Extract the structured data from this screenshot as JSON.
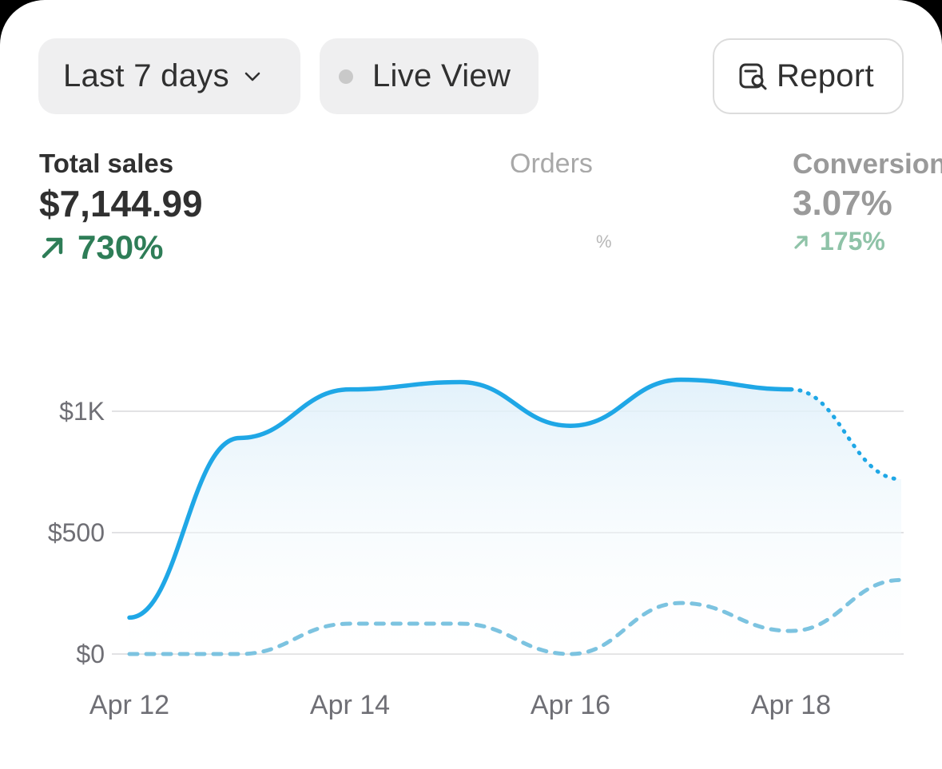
{
  "toolbar": {
    "range_label": "Last 7 days",
    "live_label": "Live View",
    "report_label": "Report"
  },
  "metrics": {
    "sales": {
      "label": "Total sales",
      "value": "$7,144.99",
      "delta": "730%"
    },
    "orders": {
      "label": "Orders",
      "ghost": "%"
    },
    "conversion": {
      "label": "Conversion",
      "value": "3.07%",
      "delta": "175%"
    }
  },
  "icons": {
    "range": "chevron-down-icon",
    "live": "status-dot-icon",
    "report": "report-search-icon",
    "delta": "arrow-up-right-icon"
  },
  "colors": {
    "series_current": "#1fa7e6",
    "series_previous": "#7cc3e0",
    "delta_positive": "#2e7d57",
    "gridline": "#e2e2e4"
  },
  "chart_data": {
    "type": "line",
    "x": [
      "Apr 12",
      "Apr 13",
      "Apr 14",
      "Apr 15",
      "Apr 16",
      "Apr 17",
      "Apr 18",
      "Apr 19"
    ],
    "tick_labels_x": [
      "Apr 12",
      "Apr 14",
      "Apr 16",
      "Apr 18"
    ],
    "tick_labels_y": [
      "$0",
      "$500",
      "$1K"
    ],
    "ylim": [
      0,
      1000
    ],
    "grid": true,
    "series": [
      {
        "values": [
          150,
          890,
          1090,
          1120,
          940,
          1130,
          1090,
          720
        ],
        "style": "solid-then-dotted-last-segment",
        "fill": true
      },
      {
        "values": [
          0,
          0,
          125,
          125,
          0,
          210,
          95,
          305
        ],
        "style": "dashed"
      }
    ]
  }
}
